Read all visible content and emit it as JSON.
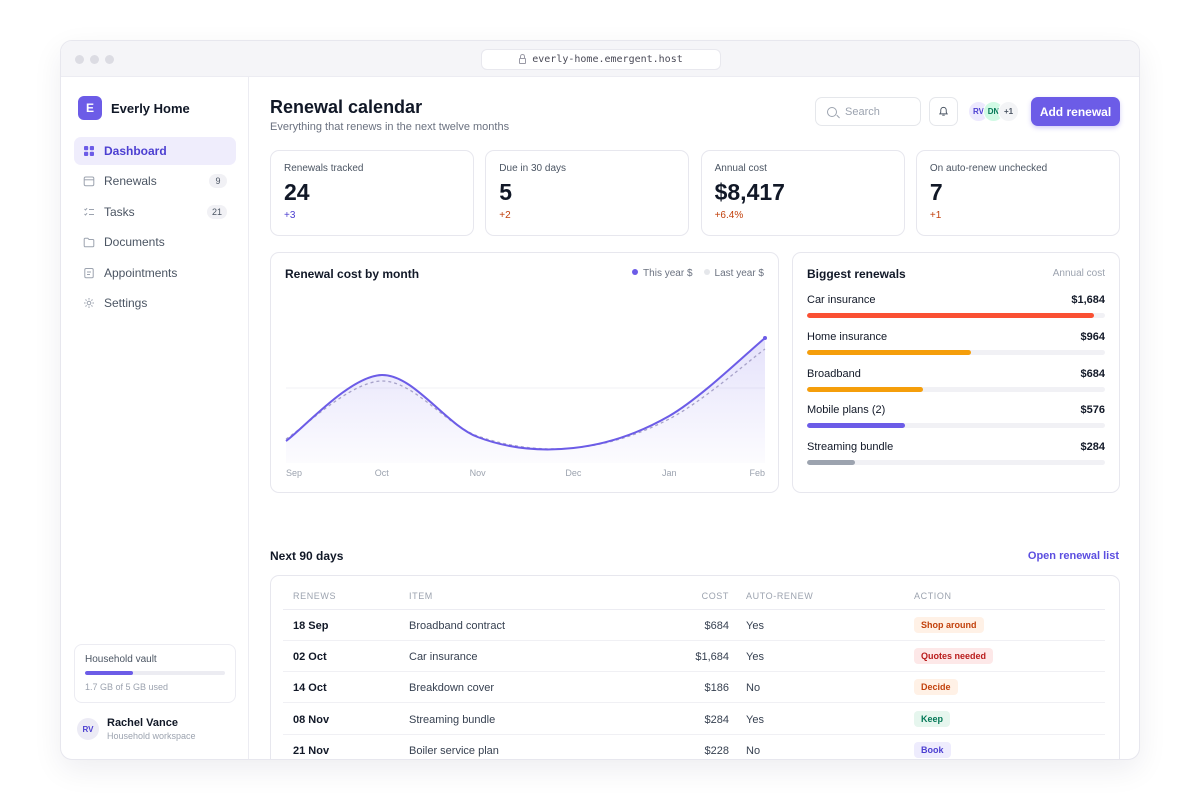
{
  "browser": {
    "url": "everly-home.emergent.host"
  },
  "app": {
    "name": "Everly Home",
    "logo_letter": "E"
  },
  "sidebar": {
    "items": [
      {
        "label": "Dashboard",
        "icon": "grid-icon",
        "active": true,
        "badge": ""
      },
      {
        "label": "Renewals",
        "icon": "calendar-icon",
        "active": false,
        "badge": "9"
      },
      {
        "label": "Tasks",
        "icon": "checklist-icon",
        "active": false,
        "badge": "21"
      },
      {
        "label": "Documents",
        "icon": "folder-icon",
        "active": false,
        "badge": ""
      },
      {
        "label": "Appointments",
        "icon": "clipboard-icon",
        "active": false,
        "badge": ""
      },
      {
        "label": "Settings",
        "icon": "gear-icon",
        "active": false,
        "badge": ""
      }
    ],
    "vault": {
      "title": "Household vault",
      "usage": "1.7 GB of 5 GB used",
      "used_fraction": 0.34
    },
    "user": {
      "initials": "RV",
      "name": "Rachel Vance",
      "subtitle": "Household workspace"
    }
  },
  "header": {
    "title": "Renewal calendar",
    "subtitle": "Everything that renews in the next twelve months",
    "search_placeholder": "Search",
    "people": [
      {
        "initials": "RV",
        "bg": "#ede9fe",
        "fg": "#4c3fd1"
      },
      {
        "initials": "DN",
        "bg": "#d1fae5",
        "fg": "#047857"
      },
      {
        "initials": "+1",
        "bg": "#f3f4f6",
        "fg": "#4b5563"
      }
    ],
    "add_button": "Add renewal"
  },
  "stats": [
    {
      "label": "Renewals tracked",
      "value": "24",
      "delta": "+3",
      "delta_color": "#4c3fd1"
    },
    {
      "label": "Due in 30 days",
      "value": "5",
      "delta": "+2",
      "delta_color": "#c2410c"
    },
    {
      "label": "Annual cost",
      "value": "$8,417",
      "delta": "+6.4%",
      "delta_color": "#c2410c"
    },
    {
      "label": "On auto-renew unchecked",
      "value": "7",
      "delta": "+1",
      "delta_color": "#c2410c"
    }
  ],
  "chart_data": {
    "type": "line",
    "title": "Renewal cost by month",
    "categories": [
      "Sep",
      "Oct",
      "Nov",
      "Dec",
      "Jan",
      "Feb"
    ],
    "series": [
      {
        "name": "This year $",
        "color": "#6c5ce7",
        "values": [
          22,
          88,
          26,
          15,
          47,
          125
        ]
      },
      {
        "name": "Last year $",
        "color": "#a7a2c9",
        "values": [
          24,
          82,
          27,
          15,
          44,
          114
        ]
      }
    ],
    "ylim": [
      0,
      150
    ],
    "legend": "top-right",
    "grid": false
  },
  "biggest": {
    "title": "Biggest renewals",
    "caption": "Annual cost",
    "max": 1750,
    "items": [
      {
        "label": "Car insurance",
        "value": "$1,684",
        "amount": 1684,
        "color": "#fa5033"
      },
      {
        "label": "Home insurance",
        "value": "$964",
        "amount": 964,
        "color": "#f59e0b"
      },
      {
        "label": "Broadband",
        "value": "$684",
        "amount": 684,
        "color": "#f59e0b"
      },
      {
        "label": "Mobile plans (2)",
        "value": "$576",
        "amount": 576,
        "color": "#6c5ce7"
      },
      {
        "label": "Streaming bundle",
        "value": "$284",
        "amount": 284,
        "color": "#9ca3af"
      }
    ]
  },
  "upcoming": {
    "title": "Next 90 days",
    "link": "Open renewal list",
    "columns": [
      "RENEWS",
      "ITEM",
      "COST",
      "AUTO-RENEW",
      "ACTION"
    ],
    "rows": [
      {
        "date": "18 Sep",
        "item": "Broadband contract",
        "cost": "$684",
        "auto": "Yes",
        "action": "Shop around",
        "tag_bg": "#fff1e6",
        "tag_fg": "#c2410c"
      },
      {
        "date": "02 Oct",
        "item": "Car insurance",
        "cost": "$1,684",
        "auto": "Yes",
        "action": "Quotes needed",
        "tag_bg": "#fde8e8",
        "tag_fg": "#b91c1c"
      },
      {
        "date": "14 Oct",
        "item": "Breakdown cover",
        "cost": "$186",
        "auto": "No",
        "action": "Decide",
        "tag_bg": "#fff1e6",
        "tag_fg": "#c2410c"
      },
      {
        "date": "08 Nov",
        "item": "Streaming bundle",
        "cost": "$284",
        "auto": "Yes",
        "action": "Keep",
        "tag_bg": "#e6f6ee",
        "tag_fg": "#047857"
      },
      {
        "date": "21 Nov",
        "item": "Boiler service plan",
        "cost": "$228",
        "auto": "No",
        "action": "Book",
        "tag_bg": "#eeecfd",
        "tag_fg": "#4c3fd1"
      }
    ]
  }
}
